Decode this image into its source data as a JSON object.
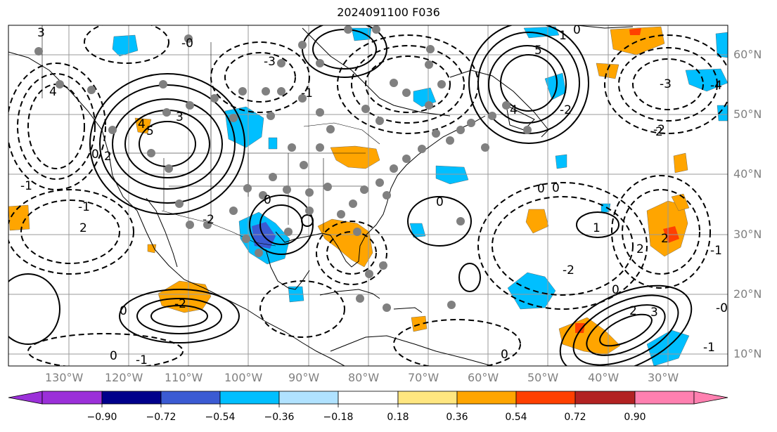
{
  "title": "2024091100 F036",
  "colors": {
    "positive": "#FFA500",
    "positive_core": "#FF4000",
    "negative": "#00BFFF",
    "negative_core": "#3B5BD3",
    "grid": "#9a9a9a",
    "land": "#000000"
  },
  "map": {
    "projection": "equirectangular",
    "lon_range": [
      -140,
      -15
    ],
    "lat_range": [
      7,
      65
    ],
    "lat_labels": [
      "60°N",
      "50°N",
      "40°N",
      "30°N",
      "20°N",
      "10°N"
    ],
    "lon_labels": [
      "130°W",
      "120°W",
      "110°W",
      "100°W",
      "90°W",
      "80°W",
      "70°W",
      "60°W",
      "50°W",
      "40°W",
      "30°W"
    ],
    "contour_labels": [
      "3",
      "4",
      "5",
      "3",
      "2",
      "0",
      "-3",
      "-2",
      "-1",
      "2",
      "4",
      "-4",
      "5",
      "-2",
      "4",
      "-3",
      "-2",
      "0",
      "-1",
      "0",
      "3",
      "2",
      "0",
      "-2",
      "0",
      "-0",
      "-1",
      "0",
      "1",
      "0",
      "-1",
      "2",
      "-2",
      "-1",
      "0",
      "0",
      "1",
      "-0",
      "-1",
      "2",
      "2",
      "0"
    ]
  },
  "colorbar": {
    "colors": [
      "#9B30D9",
      "#00008B",
      "#3B5BD3",
      "#00BFFF",
      "#B0E2FF",
      "#FFFFFF",
      "#FFE680",
      "#FFA500",
      "#FF4000",
      "#B22222",
      "#FF80B0"
    ],
    "tick_labels": [
      "−0.90",
      "−0.72",
      "−0.54",
      "−0.36",
      "−0.18",
      "0.18",
      "0.36",
      "0.54",
      "0.72",
      "0.90"
    ]
  }
}
